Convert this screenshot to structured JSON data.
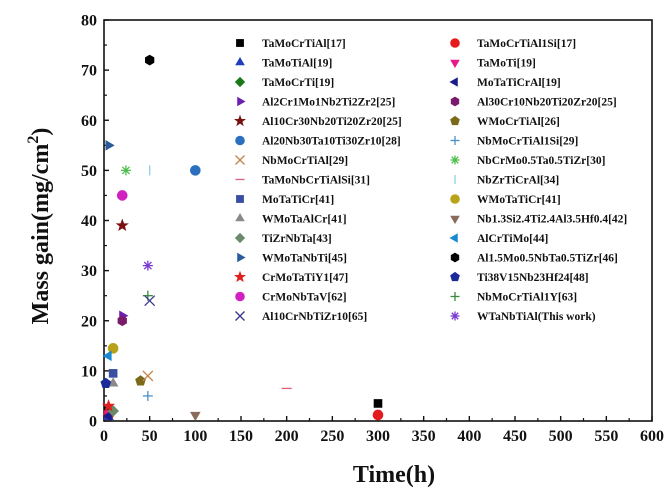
{
  "chart_data": {
    "type": "scatter",
    "title": "",
    "xlabel": "Time(h)",
    "ylabel": "Mass gain(mg/cm²)",
    "ylabel_parts": [
      "Mass gain(mg/cm",
      "2",
      ")"
    ],
    "xlim": [
      0,
      600
    ],
    "ylim": [
      0,
      80
    ],
    "xticks": [
      0,
      50,
      100,
      150,
      200,
      250,
      300,
      350,
      400,
      450,
      500,
      550,
      600
    ],
    "yticks": [
      0,
      10,
      20,
      30,
      40,
      50,
      60,
      70,
      80
    ],
    "grid": false,
    "legend_position": "top-right",
    "series": [
      {
        "name": "TaMoCrTiAl[17]",
        "marker": "square",
        "color": "#000000",
        "points": [
          [
            5,
            2
          ],
          [
            300,
            3.5
          ]
        ]
      },
      {
        "name": "TaMoCrTiAl1Si[17]",
        "marker": "circle",
        "color": "#e41a1c",
        "points": [
          [
            5,
            1.2
          ],
          [
            300,
            1.2
          ]
        ]
      },
      {
        "name": "TaMoTiAl[19]",
        "marker": "triangle-up",
        "color": "#1f3fbf",
        "points": [
          [
            5,
            0.8
          ]
        ]
      },
      {
        "name": "TaMoTi[19]",
        "marker": "triangle-down",
        "color": "#e6198a",
        "points": [
          [
            5,
            1.5
          ]
        ]
      },
      {
        "name": "TaMoCrTi[19]",
        "marker": "diamond",
        "color": "#1a7a1a",
        "points": [
          [
            10,
            2
          ]
        ]
      },
      {
        "name": "MoTaTiCrAl[19]",
        "marker": "triangle-left",
        "color": "#1a1a8a",
        "points": [
          [
            5,
            1
          ]
        ]
      },
      {
        "name": "Al2Cr1Mo1Nb2Ti2Zr2[25]",
        "marker": "triangle-right",
        "color": "#6a1fb0",
        "points": [
          [
            20,
            21
          ]
        ]
      },
      {
        "name": "Al30Cr10Nb20Ti20Zr20[25]",
        "marker": "hexagon",
        "color": "#7a1a6a",
        "points": [
          [
            20,
            20
          ]
        ]
      },
      {
        "name": "Al10Cr30Nb20Ti20Zr20[25]",
        "marker": "star",
        "color": "#7a1010",
        "points": [
          [
            20,
            39
          ]
        ]
      },
      {
        "name": "WMoCrTiAl[26]",
        "marker": "pentagon",
        "color": "#7a6a1a",
        "points": [
          [
            40,
            8
          ]
        ]
      },
      {
        "name": "Al20Nb30Ta10Ti30Zr10[28]",
        "marker": "circle",
        "color": "#2c6fbf",
        "points": [
          [
            100,
            50
          ]
        ]
      },
      {
        "name": "NbMoCrTiAl1Si[29]",
        "marker": "plus",
        "color": "#4a90c8",
        "points": [
          [
            48,
            5
          ]
        ]
      },
      {
        "name": "NbMoCrTiAl[29]",
        "marker": "x",
        "color": "#c8874a",
        "points": [
          [
            48,
            9
          ]
        ]
      },
      {
        "name": "NbCrMo0.5Ta0.5TiZr[30]",
        "marker": "asterisk",
        "color": "#4fbf4f",
        "points": [
          [
            24,
            50
          ]
        ]
      },
      {
        "name": "TaMoNbCrTiAlSi[31]",
        "marker": "hline",
        "color": "#e0607a",
        "points": [
          [
            200,
            6.5
          ]
        ]
      },
      {
        "name": "NbZrTiCrAl[34]",
        "marker": "vline",
        "color": "#8fd0e0",
        "points": [
          [
            50,
            50
          ]
        ]
      },
      {
        "name": "MoTaTiCr[41]",
        "marker": "square",
        "color": "#3a4fa0",
        "points": [
          [
            10,
            9.5
          ]
        ]
      },
      {
        "name": "WMoTaTiCr[41]",
        "marker": "circle",
        "color": "#b8a21a",
        "points": [
          [
            10,
            14.5
          ]
        ]
      },
      {
        "name": "WMoTaAlCr[41]",
        "marker": "triangle-up",
        "color": "#8a8a8a",
        "points": [
          [
            10,
            7.5
          ]
        ]
      },
      {
        "name": "Nb1.3Si2.4Ti2.4Al3.5Hf0.4[42]",
        "marker": "triangle-down",
        "color": "#8a6a5a",
        "points": [
          [
            100,
            1.2
          ]
        ]
      },
      {
        "name": "TiZrNbTa[43]",
        "marker": "diamond",
        "color": "#6a8a6a",
        "points": [
          [
            10,
            2
          ]
        ]
      },
      {
        "name": "AlCrTiMo[44]",
        "marker": "triangle-left",
        "color": "#1a8ad0",
        "points": [
          [
            5,
            13
          ]
        ]
      },
      {
        "name": "WMoTaNbTi[45]",
        "marker": "triangle-right",
        "color": "#2a5a9a",
        "points": [
          [
            5,
            55
          ]
        ]
      },
      {
        "name": "Al1.5Mo0.5NbTa0.5TiZr[46]",
        "marker": "hexagon",
        "color": "#000000",
        "points": [
          [
            50,
            72
          ]
        ]
      },
      {
        "name": "CrMoTaTiY1[47]",
        "marker": "star",
        "color": "#e02020",
        "points": [
          [
            5,
            3
          ]
        ]
      },
      {
        "name": "Ti38V15Nb23Hf24[48]",
        "marker": "pentagon",
        "color": "#1a2a9a",
        "points": [
          [
            2,
            7.5
          ]
        ]
      },
      {
        "name": "CrMoNbTaV[62]",
        "marker": "circle",
        "color": "#d020c0",
        "points": [
          [
            20,
            45
          ]
        ]
      },
      {
        "name": "NbMoCrTiAl1Y[63]",
        "marker": "plus",
        "color": "#3a8a3a",
        "points": [
          [
            48,
            25
          ]
        ]
      },
      {
        "name": "Al10CrNbTiZr10[65]",
        "marker": "x",
        "color": "#3a3a8a",
        "points": [
          [
            50,
            24
          ]
        ]
      },
      {
        "name": "WTaNbTiAl(This work)",
        "marker": "asterisk",
        "color": "#7a3ad0",
        "points": [
          [
            48,
            31
          ]
        ]
      }
    ]
  }
}
